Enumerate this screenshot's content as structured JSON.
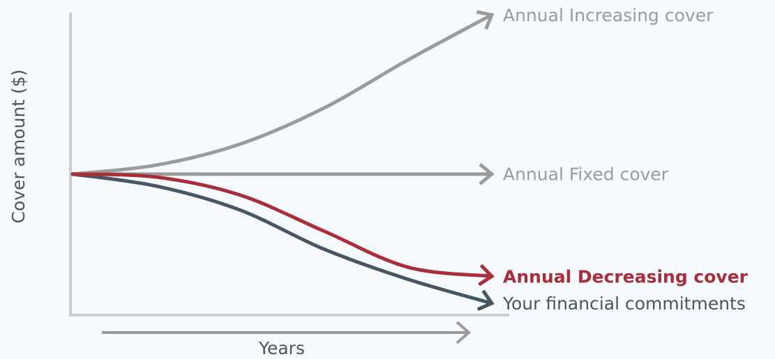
{
  "colors": {
    "background": "#f7fbfe",
    "axis": "#cdcdcd",
    "increasing": "#9b9b9b",
    "fixed": "#9b9b9b",
    "decreasing": "#aa2d3a",
    "commitments": "#485563",
    "label_grey": "#9b9b9b",
    "label_dark": "#485563"
  },
  "chart_data": {
    "type": "line",
    "title": "",
    "xlabel": "Years",
    "ylabel": "Cover amount ($)",
    "grid": false,
    "xlim": [
      0,
      10
    ],
    "ylim": [
      0,
      10
    ],
    "series": [
      {
        "name": "Annual Increasing cover",
        "color": "#9b9b9b",
        "bold": false,
        "points": [
          [
            0,
            4.6
          ],
          [
            2,
            4.9
          ],
          [
            4,
            5.6
          ],
          [
            6,
            6.8
          ],
          [
            8,
            8.4
          ],
          [
            10,
            9.9
          ]
        ]
      },
      {
        "name": "Annual Fixed cover",
        "color": "#9b9b9b",
        "bold": false,
        "points": [
          [
            0,
            4.6
          ],
          [
            10,
            4.6
          ]
        ]
      },
      {
        "name": "Annual Decreasing cover",
        "color": "#aa2d3a",
        "bold": true,
        "points": [
          [
            0,
            4.6
          ],
          [
            2,
            4.5
          ],
          [
            4,
            3.9
          ],
          [
            6,
            2.7
          ],
          [
            8,
            1.5
          ],
          [
            10,
            1.2
          ]
        ]
      },
      {
        "name": "Your financial commitments",
        "color": "#485563",
        "bold": false,
        "points": [
          [
            0,
            4.6
          ],
          [
            2,
            4.2
          ],
          [
            4,
            3.4
          ],
          [
            6,
            2.1
          ],
          [
            8,
            1.1
          ],
          [
            10,
            0.3
          ]
        ]
      }
    ]
  }
}
